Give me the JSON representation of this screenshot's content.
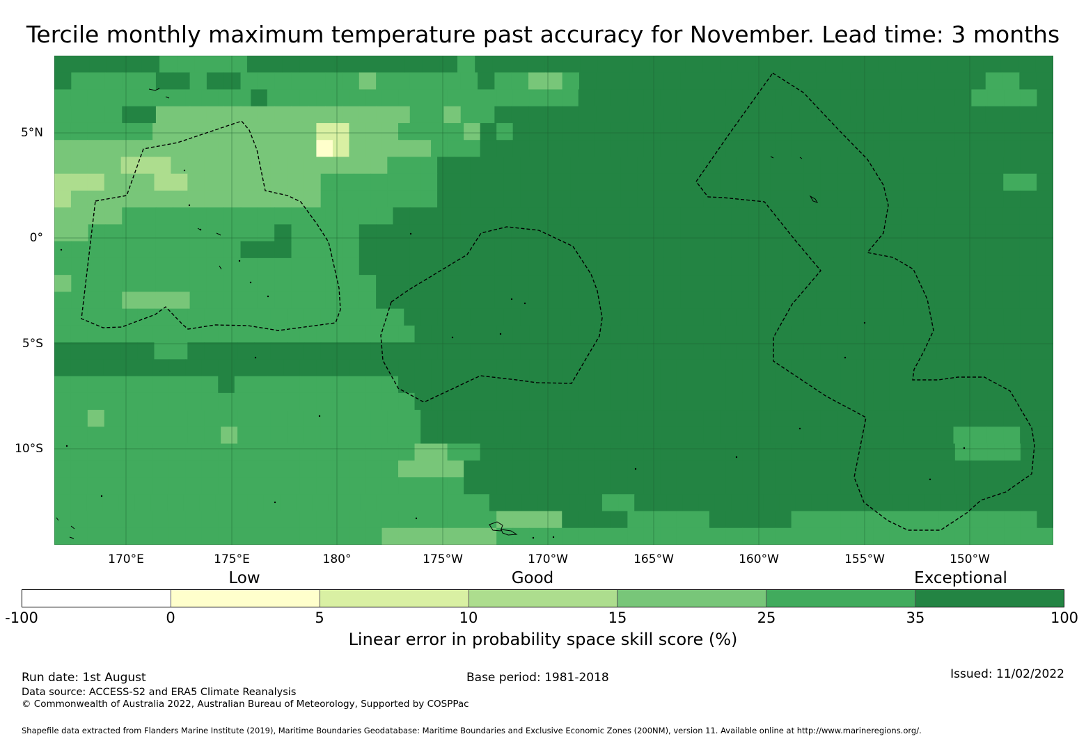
{
  "title": "Tercile monthly maximum temperature past accuracy for November. Lead time: 3 months",
  "map": {
    "lon_ticks": [
      "170°E",
      "175°E",
      "180°",
      "175°W",
      "170°W",
      "165°W",
      "160°W",
      "155°W",
      "150°W"
    ],
    "lat_ticks": [
      "5°N",
      "0°",
      "5°S",
      "10°S"
    ],
    "skill_colors": [
      "#ffffcc",
      "#d9f0a3",
      "#addd8e",
      "#78c679",
      "#41ab5d",
      "#238443"
    ],
    "grid_rows": [
      "FFFFFFEEEEEFFFFFFFFFFFFEFFFFFFFFFFFFFFFFFFFFFFFFFFFFFFFFF",
      "FEEEEEFFEFFEEEEEEEDEEEEEEFEEDDEFFFFFFFFFFFFFFFFFFFFFFFFEEFF",
      "EEEEEEEEEEEEFEEEEEEEEEEEEEEEEEEEFFFFFFFFFFFFFFFFFFFFFFFFEEEEF",
      "EEEEFFDDDDDDDDDDDDDDDEEDEEFFFFFFFFFFFFFFFFFFFFFFFFFFFFFFFFF",
      "EEEEEEDDDDDDDDDDBBDDDEEEEDFEFFFFFFFFFFFFFFFFFFFFFFFFFFFFFFFFF",
      "DDDDDDDDDDDDDDDDABDDDDDEEEFFFFFFFFFFFFFFFFFFFFFFFFFFFFFFFFFFF",
      "DDDDCCCDDDDDDDDDDDDDEEEFFFFFFFFFFFFFFFFFFFFFFFFFFFFFFFFFFFFF",
      "CCCDDDCCDDDDDDDDEEEEEEEFFFFFFFFFFFFFFFFFFFFFFFFFFFFFFFFFFEEF",
      "CDDDDDDDDDDDDDDDEEEEEEEFFFFFFFFFFFFFFFFFFFFFFFFFFFFFFFFFFFFF",
      "DDDDEEEEEEEEEEEEEEEEFFFFFFFFFFFFFFFFFFFFFFFFFFFFFFFFFFFFFFF",
      "DDEEEEEEEEEEEFEEEEFFFFFFFFFFFFFFFFFFFFFFFFFFFFFFFFFFFFFFFFF",
      "EEEEEEEEEEEFFFEEEEFFFFFFFFFFFFFFFFFFFFFFFFFFFFFFFFFFFFFFFFF",
      "EEEEEEEEEEEEEEEEEEFFFFFFFFFFFFFFFFFFFFFFFFFFFFFFFFFFFFFFFFF",
      "DEEEEEEEEEEEEEEEEEEFFFFFFFFFFFFFFFFFFFFFFFFFFFFFFFFFFFFFFFF",
      "EEEEDDDDEEEEEEEEEEEFFFFFFFFFFFFFFFFFFFFFFFFFFFFFFFFFFFFFFFF",
      "EEEEEEEEEEEEEEEEEEEEEFFFFFFFFFFFFFFFFFFFFFFFFFFFFFFFFFFFFFFF",
      "EEEEEEEEEEEEEEEEEEEEEEFFFFFFFFFFFFFFFFFFFFFFFFFFFFFFFFFFFFFFF",
      "FFFFFFEEFFFFFFFFFFFFFFFFFFFFFFFFFFFFFFFFFFFFFFFFFFFFFFFFFFFF",
      "FFFFFFFFFFFFFFFFFFFFFFFFFFFFFFFFFFFFFFFFFFFFFFFFFFFFFFFFFFFFF",
      "EEEEEEEEEEFEEEEEEEEEEFFFFFFFFFFFFFFFFFFFFFFFFFFFFFFFFFFFFFFFF",
      "EEEEEEEEEEEEEEEEEEEEEEFFFFFFFFFFFFFFFFFFFFFFFFFFFFFFFFFFFFFFF",
      "EEDEEEEEEEEEEEEEEEEEEEFFFFFFFFFFFFFFFFFFFFFFFFFFFFFFFFFFFFFF",
      "EEEEEEEEEEDEEEEEEEEEEEFFFFFFFFFFFFFFFFFFFFFFFFFFFFFFFFEEEEFF",
      "EEEEEEEEEEEEEEEEEEEEEEDDEEFFFFFFFFFFFFFFFFFFFFFFFFFFFFFEEEEFF",
      "EEEEEEEEEEEEEEEEEEEEEDDDDFFFFFFFFFFFFFFFFFFFFFFFFFFFFFFFFFFFF",
      "EEEEEEEEEEEEEEEEEEEEEEEEEFFFFFFFFFFFFFFFFFFFFFFFFFFFFFFFFFFFF",
      "EEEEEEEEEEEEEEEEEEEEEEEEEEEFFFFFFFEEFFFFFFFFFFFFFFFFFFFFFFFFFF",
      "EEEEEEEEEEEEEEEEEEEEEEEEEEEDDDDFFFFEEEEEFFFFFEEEEEEEEEEEEEEEF",
      "EEEEEEEEEEEEEEEEEEEEDDDDDDDEEEEEEEEEEEEEEEEEEEEEEEEEEEEEEEEEE"
    ]
  },
  "legend": {
    "categories": [
      "Low",
      "Good",
      "Exceptional"
    ],
    "segments": [
      {
        "from": "-100",
        "color": "#ffffff"
      },
      {
        "from": "0",
        "color": "#ffffcc"
      },
      {
        "from": "5",
        "color": "#d9f0a3"
      },
      {
        "from": "10",
        "color": "#addd8e"
      },
      {
        "from": "15",
        "color": "#78c679"
      },
      {
        "from": "25",
        "color": "#41ab5d"
      },
      {
        "from": "35",
        "color": "#238443"
      }
    ],
    "ticks": [
      "-100",
      "0",
      "5",
      "10",
      "15",
      "25",
      "35",
      "100"
    ],
    "label": "Linear error in probability space skill score (%)"
  },
  "footer": {
    "run_date": "Run date: 1st August",
    "base_period": "Base period: 1981-2018",
    "issued": "Issued: 11/02/2022",
    "data_source": "Data source: ACCESS-S2 and ERA5 Climate Reanalysis",
    "copyright": "© Commonwealth of Australia 2022, Australian Bureau of Meteorology, Supported by COSPPac",
    "shapefile": "Shapefile data extracted from Flanders Marine Institute (2019), Maritime Boundaries Geodatabase: Maritime Boundaries and Exclusive Economic Zones (200NM), version 11. Available online at http://www.marineregions.org/."
  }
}
